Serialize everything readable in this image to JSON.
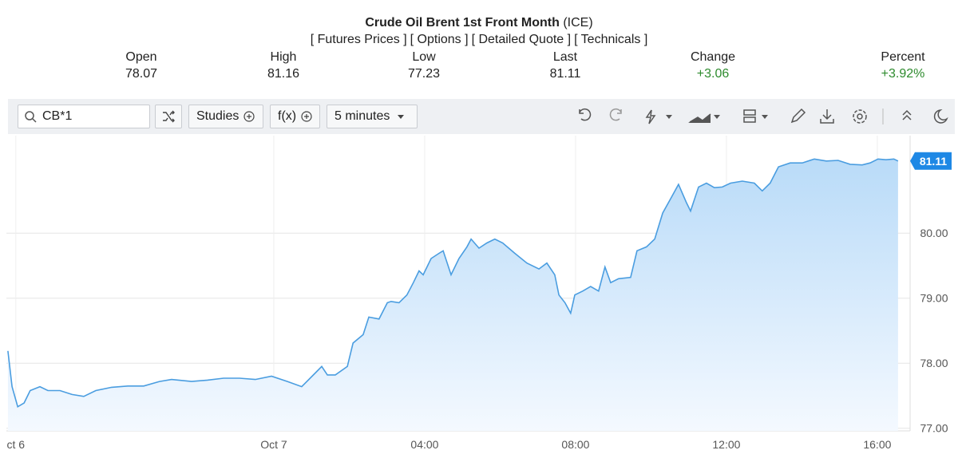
{
  "header": {
    "title": "Crude Oil Brent 1st Front Month",
    "exchange": "(ICE)",
    "links": [
      "[ Futures Prices ]",
      "[ Options ]",
      "[ Detailed Quote ]",
      "[ Technicals ]"
    ],
    "stats": [
      {
        "label": "Open",
        "value": "78.07"
      },
      {
        "label": "High",
        "value": "81.16"
      },
      {
        "label": "Low",
        "value": "77.23"
      },
      {
        "label": "Last",
        "value": "81.11"
      },
      {
        "label": "Change",
        "value": "+3.06"
      },
      {
        "label": "Percent",
        "value": "+3.92%"
      }
    ]
  },
  "toolbar": {
    "symbol": "CB*1",
    "studies": "Studies",
    "functions": "f(x)",
    "interval": "5 minutes"
  },
  "chart_data": {
    "type": "area",
    "x": [
      -7.05,
      -6.94,
      -6.79,
      -6.62,
      -6.46,
      -6.2,
      -5.99,
      -5.67,
      -5.35,
      -5.04,
      -4.72,
      -4.3,
      -3.87,
      -3.45,
      -3.03,
      -2.71,
      -2.18,
      -1.76,
      -1.33,
      -0.91,
      -0.49,
      -0.06,
      0.36,
      0.74,
      1.1,
      1.27,
      1.42,
      1.63,
      1.95,
      2.1,
      2.37,
      2.52,
      2.79,
      3.01,
      3.11,
      3.32,
      3.53,
      3.7,
      3.85,
      3.96,
      4.17,
      4.38,
      4.49,
      4.7,
      4.91,
      5.12,
      5.23,
      5.44,
      5.65,
      5.86,
      6.07,
      6.39,
      6.71,
      7.03,
      7.24,
      7.45,
      7.56,
      7.72,
      7.87,
      7.98,
      8.19,
      8.4,
      8.61,
      8.78,
      8.93,
      9.14,
      9.46,
      9.63,
      9.88,
      10.1,
      10.31,
      10.52,
      10.73,
      10.94,
      11.05,
      11.26,
      11.47,
      11.68,
      11.89,
      12.11,
      12.42,
      12.74,
      12.95,
      13.16,
      13.38,
      13.69,
      14.01,
      14.33,
      14.65,
      14.96,
      15.28,
      15.6,
      15.81,
      16.02,
      16.23,
      16.44,
      16.55
    ],
    "series": [
      {
        "name": "CB*1",
        "color": "#4a9de0",
        "values": [
          78.19,
          77.64,
          77.33,
          77.39,
          77.58,
          77.64,
          77.58,
          77.58,
          77.52,
          77.49,
          77.58,
          77.63,
          77.65,
          77.65,
          77.72,
          77.75,
          77.72,
          77.74,
          77.77,
          77.77,
          77.75,
          77.8,
          77.72,
          77.64,
          77.85,
          77.95,
          77.82,
          77.82,
          77.95,
          78.31,
          78.44,
          78.71,
          78.68,
          78.93,
          78.95,
          78.93,
          79.05,
          79.24,
          79.42,
          79.36,
          79.61,
          79.69,
          79.73,
          79.36,
          79.61,
          79.79,
          79.91,
          79.77,
          79.85,
          79.91,
          79.85,
          79.69,
          79.54,
          79.45,
          79.54,
          79.36,
          79.05,
          78.93,
          78.77,
          79.05,
          79.11,
          79.18,
          79.11,
          79.48,
          79.24,
          79.3,
          79.32,
          79.73,
          79.79,
          79.91,
          80.31,
          80.53,
          80.75,
          80.47,
          80.34,
          80.71,
          80.77,
          80.7,
          80.71,
          80.77,
          80.8,
          80.77,
          80.65,
          80.77,
          81.02,
          81.08,
          81.08,
          81.14,
          81.11,
          81.12,
          81.06,
          81.05,
          81.08,
          81.14,
          81.13,
          81.14,
          81.11
        ]
      }
    ],
    "xlim": [
      -7.09,
      16.87
    ],
    "xticks": [
      {
        "value": -6.84,
        "label": "ct 6"
      },
      {
        "value": 0,
        "label": "Oct 7"
      },
      {
        "value": 4,
        "label": "04:00"
      },
      {
        "value": 8,
        "label": "08:00"
      },
      {
        "value": 12,
        "label": "12:00"
      },
      {
        "value": 16,
        "label": "16:00"
      }
    ],
    "ylim": [
      76.96,
      81.5
    ],
    "yticks": [
      {
        "value": 77,
        "label": "77.00"
      },
      {
        "value": 78,
        "label": "78.00"
      },
      {
        "value": 79,
        "label": "79.00"
      },
      {
        "value": 80,
        "label": "80.00"
      }
    ],
    "grid": true
  }
}
